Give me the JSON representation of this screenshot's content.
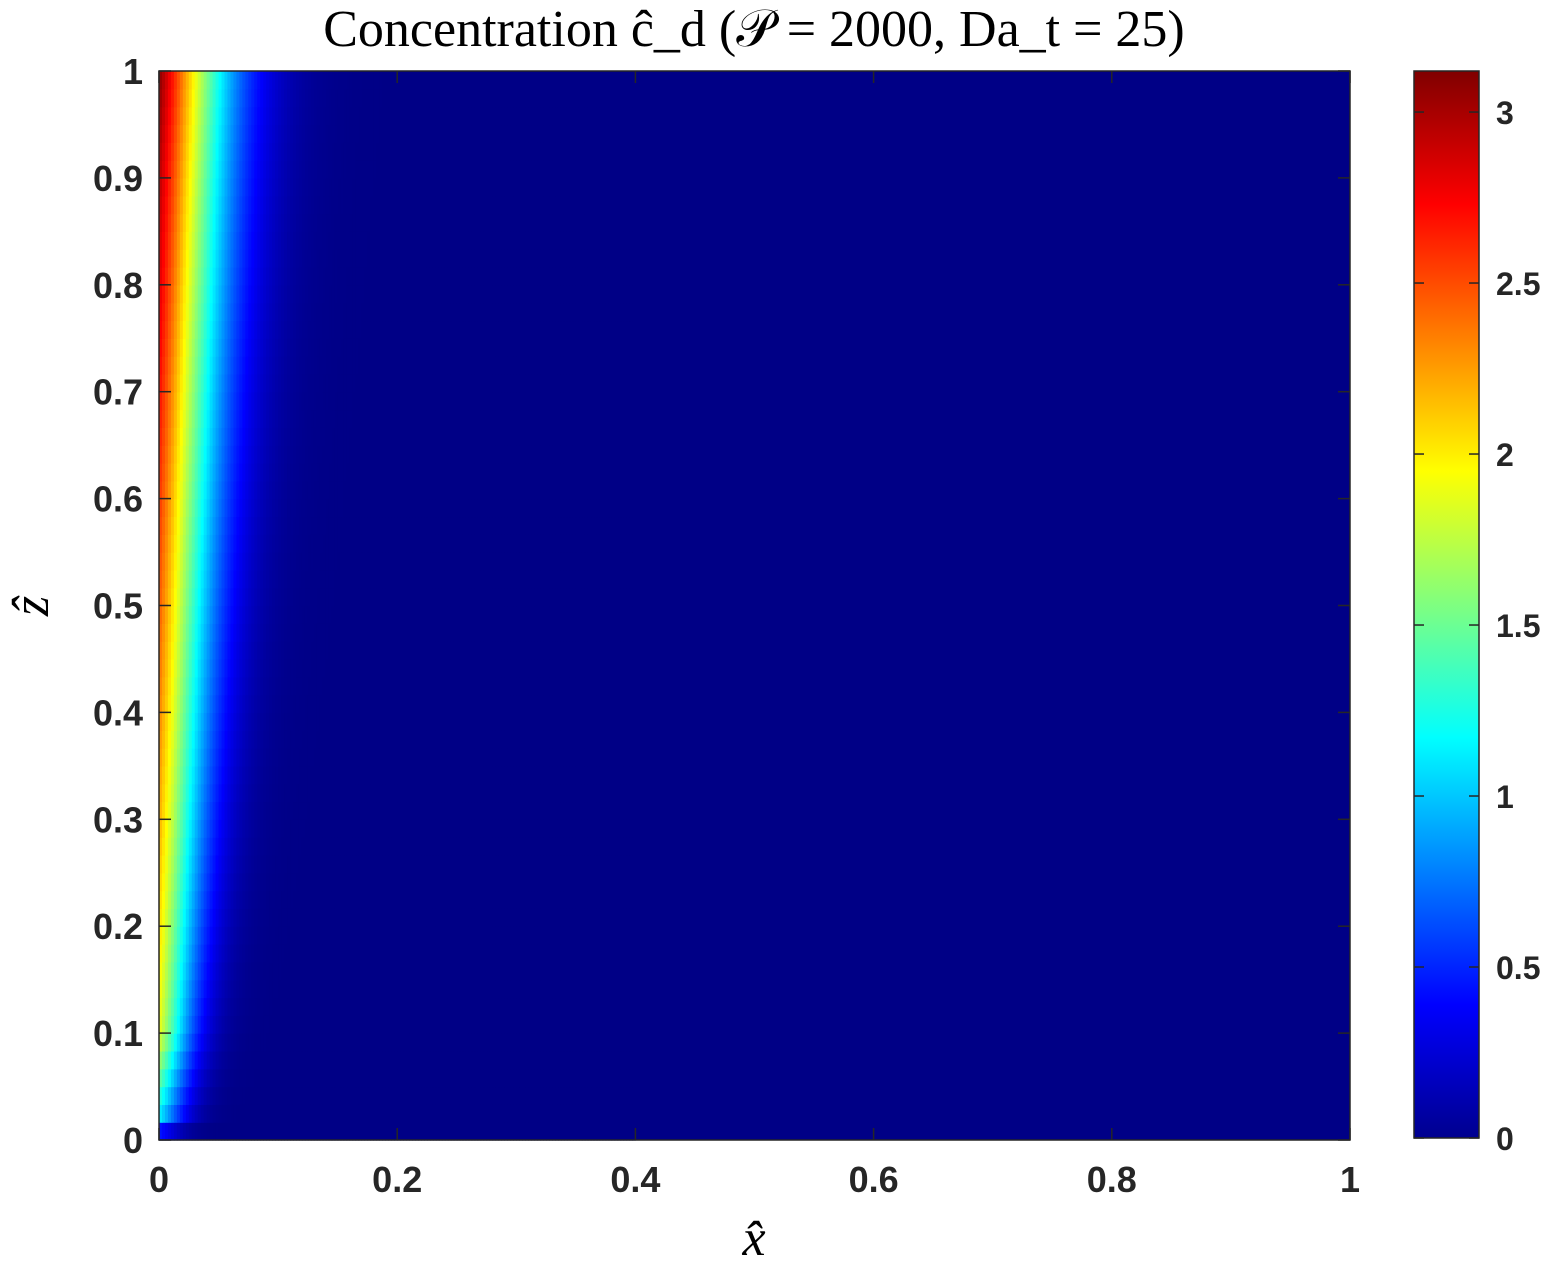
{
  "chart_data": {
    "type": "heatmap",
    "title": "Concentration ĉ_d (𝒫 = 2000, Da_t = 25)",
    "xlabel": "x̂",
    "ylabel": "ẑ",
    "xlim": [
      0,
      1
    ],
    "ylim": [
      0,
      1
    ],
    "xticks": [
      "0",
      "0.2",
      "0.4",
      "0.6",
      "0.8",
      "1"
    ],
    "yticks": [
      "0",
      "0.1",
      "0.2",
      "0.3",
      "0.4",
      "0.5",
      "0.6",
      "0.7",
      "0.8",
      "0.9",
      "1"
    ],
    "colorbar": {
      "colormap": "jet",
      "range": [
        0,
        3.12
      ],
      "ticks": [
        "0",
        "0.5",
        "1",
        "1.5",
        "2",
        "2.5",
        "3"
      ]
    },
    "field": {
      "description_values": "concentration is maximal (~3.1) along x = 0 at z = 1 and decays with x; boundary layer thickens with z",
      "wall_value_by_z": [
        [
          0,
          0.0
        ],
        [
          0.02,
          1.1
        ],
        [
          0.1,
          1.9
        ],
        [
          0.3,
          2.2
        ],
        [
          0.5,
          2.45
        ],
        [
          0.7,
          2.7
        ],
        [
          0.9,
          2.95
        ],
        [
          1.0,
          3.1
        ]
      ],
      "decay_length": 0.045,
      "background_value": 0.02
    }
  }
}
